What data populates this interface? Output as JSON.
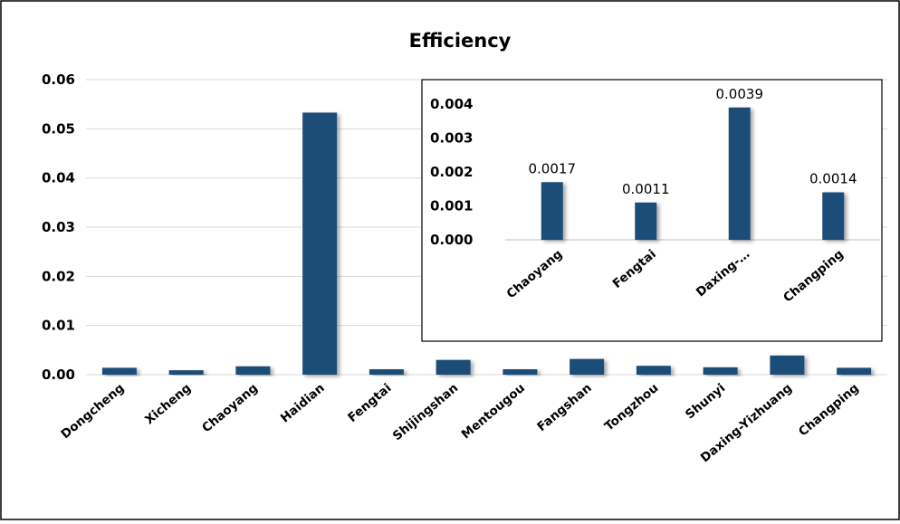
{
  "chart_data": [
    {
      "type": "bar",
      "title": "Efficiency",
      "xlabel": "",
      "ylabel": "",
      "categories": [
        "Dongcheng",
        "Xicheng",
        "Chaoyang",
        "Haidian",
        "Fengtai",
        "Shijingshan",
        "Mentougou",
        "Fangshan",
        "Tongzhou",
        "Shunyi",
        "Daxing-Yizhuang",
        "Changping"
      ],
      "values": [
        0.0014,
        0.0009,
        0.0017,
        0.0533,
        0.0011,
        0.003,
        0.0011,
        0.0032,
        0.0018,
        0.0015,
        0.0039,
        0.0014
      ],
      "ylim": [
        0,
        0.06
      ],
      "yticks": [
        "0.00",
        "0.01",
        "0.02",
        "0.03",
        "0.04",
        "0.05",
        "0.06"
      ],
      "grid": true,
      "legend": "none",
      "bar_color": "#1F4E79"
    },
    {
      "type": "bar",
      "title": "",
      "xlabel": "",
      "ylabel": "",
      "categories": [
        "Chaoyang",
        "Fengtai",
        "Daxing-…",
        "Changping"
      ],
      "values": [
        0.0017,
        0.0011,
        0.0039,
        0.0014
      ],
      "data_labels": [
        "0.0017",
        "0.0011",
        "0.0039",
        "0.0014"
      ],
      "ylim": [
        0,
        0.004
      ],
      "yticks": [
        "0.000",
        "0.001",
        "0.002",
        "0.003",
        "0.004"
      ],
      "grid": false,
      "legend": "none",
      "placement": "inset top-right",
      "bar_color": "#1F4E79"
    }
  ]
}
